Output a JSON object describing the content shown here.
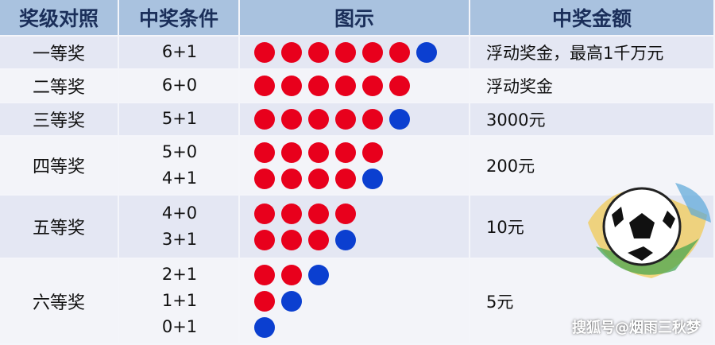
{
  "header": [
    "奖级对照",
    "中奖条件",
    "图示",
    "中奖金额"
  ],
  "rows": [
    {
      "level": "一等奖",
      "conditions": [
        {
          "label": "6+1",
          "red": 6,
          "blue": 1
        }
      ],
      "prize": "浮动奖金，最高1千万元"
    },
    {
      "level": "二等奖",
      "conditions": [
        {
          "label": "6+0",
          "red": 6,
          "blue": 0
        }
      ],
      "prize": "浮动奖金"
    },
    {
      "level": "三等奖",
      "conditions": [
        {
          "label": "5+1",
          "red": 5,
          "blue": 1
        }
      ],
      "prize": "3000元"
    },
    {
      "level": "四等奖",
      "conditions": [
        {
          "label": "5+0",
          "red": 5,
          "blue": 0
        },
        {
          "label": "4+1",
          "red": 4,
          "blue": 1
        }
      ],
      "prize": "200元"
    },
    {
      "level": "五等奖",
      "conditions": [
        {
          "label": "4+0",
          "red": 4,
          "blue": 0
        },
        {
          "label": "3+1",
          "red": 3,
          "blue": 1
        }
      ],
      "prize": "10元"
    },
    {
      "level": "六等奖",
      "conditions": [
        {
          "label": "2+1",
          "red": 2,
          "blue": 1
        },
        {
          "label": "1+1",
          "red": 1,
          "blue": 1
        },
        {
          "label": "0+1",
          "red": 0,
          "blue": 1
        }
      ],
      "prize": "5元"
    }
  ],
  "watermark": "搜狐号@烟雨三秋梦"
}
